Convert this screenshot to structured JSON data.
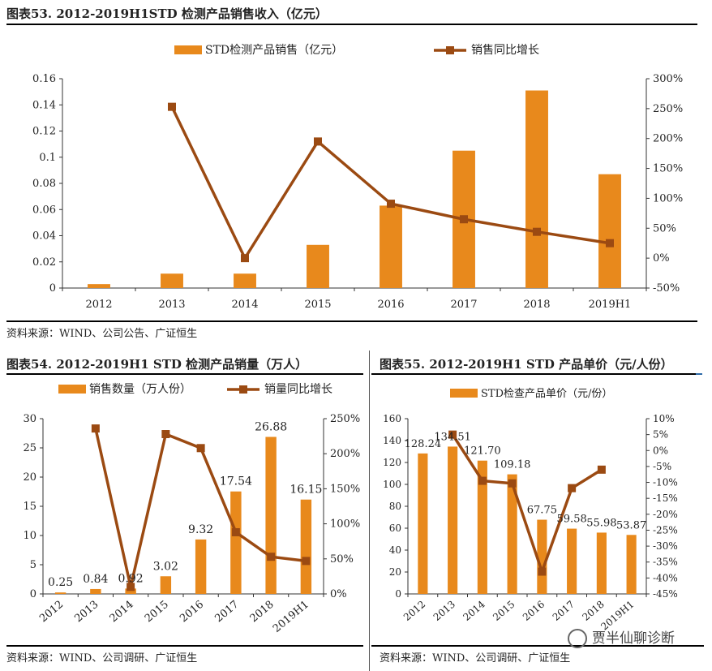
{
  "fig53": {
    "title": "图表53.  2012-2019H1STD 检测产品销售收入（亿元）",
    "source": "资料来源：WIND、公司公告、广证恒生",
    "chart_data": {
      "type": "bar+line",
      "categories": [
        "2012",
        "2013",
        "2014",
        "2015",
        "2016",
        "2017",
        "2018",
        "2019H1"
      ],
      "series": [
        {
          "name": "STD检测产品销售（亿元）",
          "type": "bar",
          "axis": "left",
          "values": [
            0.003,
            0.011,
            0.011,
            0.033,
            0.063,
            0.105,
            0.151,
            0.087
          ]
        },
        {
          "name": "销售同比增长",
          "type": "line",
          "axis": "right",
          "values": [
            null,
            253,
            0,
            195,
            91,
            65,
            44,
            25
          ]
        }
      ],
      "left_axis": {
        "min": 0,
        "max": 0.16,
        "ticks": [
          "0",
          "0.02",
          "0.04",
          "0.06",
          "0.08",
          "0.1",
          "0.12",
          "0.14",
          "0.16"
        ]
      },
      "right_axis": {
        "min": -50,
        "max": 300,
        "ticks": [
          "-50%",
          "0%",
          "50%",
          "100%",
          "150%",
          "200%",
          "250%",
          "300%"
        ]
      },
      "legend": "top"
    }
  },
  "fig54": {
    "title": "图表54.  2012-2019H1 STD 检测产品销量（万人）",
    "source": "资料来源：WIND、公司调研、广证恒生",
    "chart_data": {
      "type": "bar+line",
      "categories": [
        "2012",
        "2013",
        "2014",
        "2015",
        "2016",
        "2017",
        "2018",
        "2019H1"
      ],
      "series": [
        {
          "name": "销售数量（万人份）",
          "type": "bar",
          "axis": "left",
          "values": [
            0.25,
            0.84,
            0.92,
            3.02,
            9.32,
            17.54,
            26.88,
            16.15
          ],
          "labels": [
            "0.25",
            "0.84",
            "0.92",
            "3.02",
            "9.32",
            "17.54",
            "26.88",
            "16.15"
          ]
        },
        {
          "name": "销量同比增长",
          "type": "line",
          "axis": "right",
          "values": [
            null,
            236,
            10,
            228,
            208,
            88,
            53,
            47
          ]
        }
      ],
      "left_axis": {
        "min": 0,
        "max": 30,
        "ticks": [
          "0",
          "5",
          "10",
          "15",
          "20",
          "25",
          "30"
        ]
      },
      "right_axis": {
        "min": 0,
        "max": 250,
        "ticks": [
          "0%",
          "50%",
          "100%",
          "150%",
          "200%",
          "250%"
        ]
      },
      "legend": "top"
    }
  },
  "fig55": {
    "title": "图表55.  2012-2019H1 STD 产品单价（元/人份）",
    "source": "资料来源：WIND、公司调研、广证恒生",
    "chart_data": {
      "type": "bar+line",
      "categories": [
        "2012",
        "2013",
        "2014",
        "2015",
        "2016",
        "2017",
        "2018",
        "2019H1"
      ],
      "series": [
        {
          "name": "STD检查产品单价（元/份）",
          "type": "bar",
          "axis": "left",
          "values": [
            128.24,
            134.51,
            121.7,
            109.18,
            67.75,
            59.58,
            55.98,
            53.87
          ],
          "labels": [
            "128.24",
            "134.51",
            "121.70",
            "109.18",
            "67.75",
            "59.58",
            "55.98",
            "53.87"
          ]
        },
        {
          "name": "",
          "type": "line",
          "axis": "right",
          "values": [
            null,
            5,
            -9.5,
            -10.3,
            -38,
            -11.8,
            -6,
            null
          ]
        }
      ],
      "left_axis": {
        "min": 0,
        "max": 160,
        "ticks": [
          "0",
          "20",
          "40",
          "60",
          "80",
          "100",
          "120",
          "140",
          "160"
        ]
      },
      "right_axis": {
        "min": -45,
        "max": 10,
        "ticks": [
          "-45%",
          "-40%",
          "-35%",
          "-30%",
          "-25%",
          "-20%",
          "-15%",
          "-10%",
          "-5%",
          "0%",
          "5%",
          "10%"
        ]
      },
      "legend": "top"
    }
  },
  "watermark": "贾半仙聊诊断",
  "colors": {
    "bar": "#E8891C",
    "line": "#9B4A12",
    "rule": "#000000",
    "blue_rule": "#2E6BA8"
  }
}
